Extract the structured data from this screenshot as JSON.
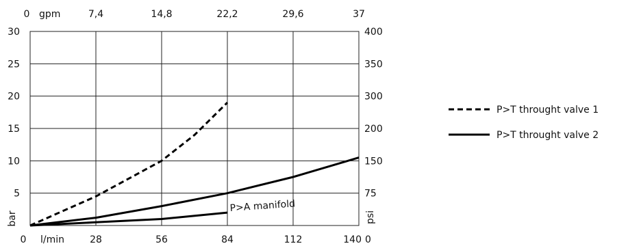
{
  "chart_data": {
    "type": "line",
    "x_axis_bottom": {
      "unit_label": "l/min",
      "ticks": [
        "0",
        "28",
        "56",
        "84",
        "112",
        "140"
      ],
      "range": [
        0,
        140
      ]
    },
    "x_axis_top": {
      "unit_label": "gpm",
      "ticks": [
        "0",
        "7,4",
        "14,8",
        "22,2",
        "29,6",
        "37"
      ],
      "range": [
        0,
        37
      ]
    },
    "y_axis_left": {
      "label": "bar",
      "ticks": [
        "5",
        "10",
        "15",
        "20",
        "25",
        "30"
      ],
      "range": [
        0,
        30
      ]
    },
    "y_axis_right": {
      "label": "psi",
      "ticks": [
        "0",
        "75",
        "150",
        "200",
        "250",
        "300",
        "350",
        "400"
      ]
    },
    "right_corner_label": "0",
    "grid": true,
    "series": [
      {
        "name": "P>T throught valve 1",
        "style": "dashed",
        "points": [
          [
            0,
            0
          ],
          [
            28,
            4.5
          ],
          [
            56,
            10
          ],
          [
            70,
            14
          ],
          [
            84,
            19
          ]
        ]
      },
      {
        "name": "P>T throught valve 2",
        "style": "solid",
        "points": [
          [
            0,
            0
          ],
          [
            28,
            1.2
          ],
          [
            56,
            3
          ],
          [
            84,
            5
          ],
          [
            112,
            7.5
          ],
          [
            140,
            10.5
          ]
        ]
      },
      {
        "name": "P>A manifold",
        "style": "solid",
        "points": [
          [
            0,
            0
          ],
          [
            28,
            0.5
          ],
          [
            56,
            1.0
          ],
          [
            84,
            2.0
          ]
        ]
      }
    ],
    "annotations": [
      {
        "text": "P>A manifold",
        "at": [
          84,
          2.0
        ]
      }
    ],
    "legend": {
      "placement": "right",
      "entries": [
        {
          "label": "P>T throught valve 1",
          "style": "dashed"
        },
        {
          "label": "P>T throught valve 2",
          "style": "solid"
        }
      ]
    }
  }
}
